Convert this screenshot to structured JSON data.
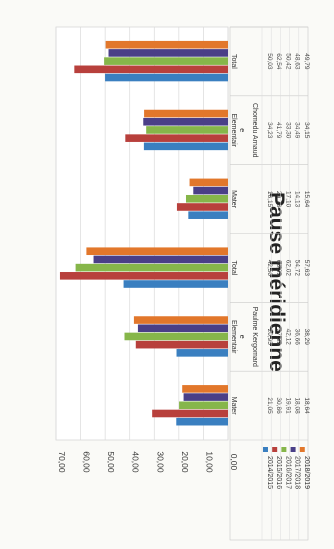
{
  "chart_data": {
    "type": "bar",
    "orientation": "rotated-90-clockwise",
    "title": "Pause méridienne",
    "categories": [
      {
        "name": "Mater",
        "group": "Paulme Kergomard"
      },
      {
        "name": "Elementair e",
        "group": "Paulme Kergomard"
      },
      {
        "name": "Total",
        "group": "Paulme Kergomard"
      },
      {
        "name": "Mater",
        "group": "Chomedu Arnaud"
      },
      {
        "name": "Elementair e",
        "group": "Chomedu Arnaud"
      },
      {
        "name": "Total",
        "group": "Chomedu Arnaud"
      }
    ],
    "group_labels": [
      "Paulme Kergomard",
      "Chomedu Arnaud"
    ],
    "series": [
      {
        "name": "2014/2015",
        "color": "#3a7fc0",
        "values": [
          21.05,
          20.95,
          42.5,
          16.15,
          34.23,
          50.03
        ]
      },
      {
        "name": "2015/2016",
        "color": "#b8403c",
        "values": [
          30.86,
          37.53,
          68.39,
          20.78,
          41.79,
          62.54
        ]
      },
      {
        "name": "2016/2017",
        "color": "#86b64a",
        "values": [
          19.91,
          42.12,
          62.02,
          17.1,
          33.3,
          50.42
        ]
      },
      {
        "name": "2017/2018",
        "color": "#4a3f87",
        "values": [
          18.08,
          36.66,
          54.72,
          14.13,
          34.49,
          48.63
        ]
      },
      {
        "name": "2018/2019",
        "color": "#e2772b",
        "values": [
          18.64,
          38.29,
          57.63,
          15.64,
          34.15,
          49.79
        ]
      }
    ],
    "table_rows": [
      {
        "label": "2014/2015",
        "cells": [
          "21,05",
          "20,95",
          "42,50",
          "16,15",
          "34,23",
          "50,03"
        ]
      },
      {
        "label": "2015/2016",
        "cells": [
          "30,86",
          "37,53",
          "68,39",
          "20,78",
          "41,79",
          "62,54"
        ]
      },
      {
        "label": "2016/2017",
        "cells": [
          "19,91",
          "42,12",
          "62,02",
          "17,10",
          "33,30",
          "50,42"
        ]
      },
      {
        "label": "2017/2018",
        "cells": [
          "18,08",
          "36,66",
          "54,72",
          "14,13",
          "34,49",
          "48,63"
        ]
      },
      {
        "label": "2018/2019",
        "cells": [
          "18,64",
          "38,29",
          "57,63",
          "15,64",
          "34,15",
          "49,79"
        ]
      }
    ],
    "ylim": [
      0,
      70
    ],
    "yticks": [
      "0,00",
      "10,00",
      "20,00",
      "30,00",
      "40,00",
      "50,00",
      "60,00",
      "70,00"
    ],
    "grid": true,
    "legend": "bottom"
  }
}
